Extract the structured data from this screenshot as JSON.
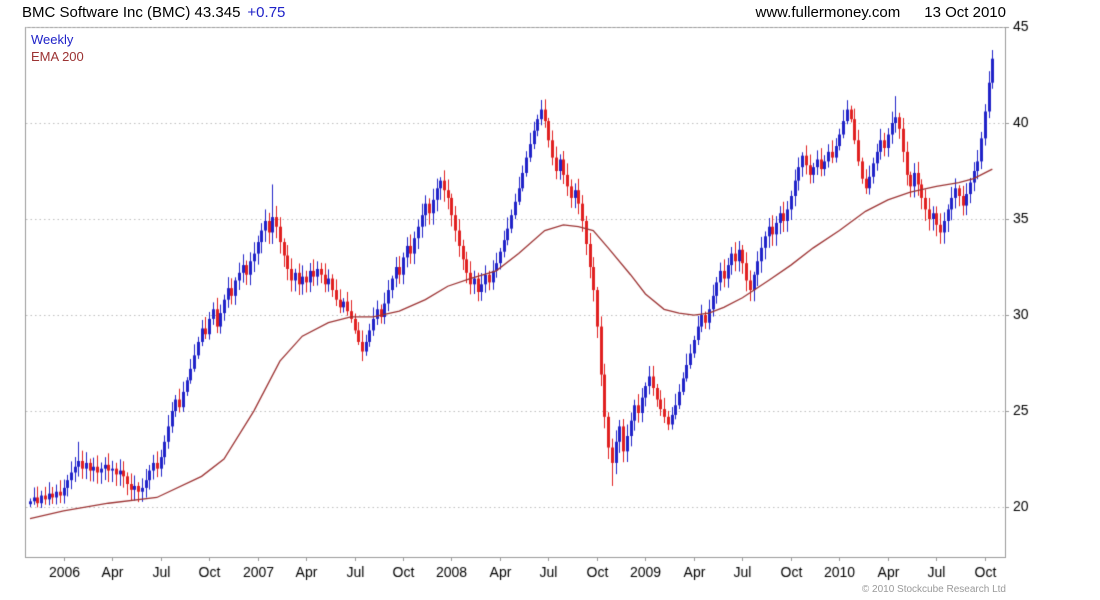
{
  "header": {
    "title": "BMC Software Inc (BMC) 43.345",
    "change": "+0.75",
    "site": "www.fullermoney.com",
    "date": "13 Oct 2010"
  },
  "legend": {
    "series": "Weekly",
    "overlay": "EMA 200"
  },
  "footer": {
    "copyright": "© 2010 Stockcube Research Ltd"
  },
  "colors": {
    "up": "#2023c8",
    "down": "#e02020",
    "ema": "#9c3333",
    "grid": "#bdbdbd",
    "border": "#9a9a9a",
    "text": "#000000"
  },
  "chart_data": {
    "type": "candlestick",
    "interval": "weekly",
    "symbol": "BMC",
    "title": "BMC Software Inc (BMC)",
    "ylim": [
      17.4,
      45
    ],
    "yticks": [
      20,
      25,
      30,
      35,
      40,
      45
    ],
    "grid": "horizontal-dotted",
    "legend_position": "top-left",
    "xticks": [
      {
        "i": 9,
        "label": "2006"
      },
      {
        "i": 22,
        "label": "Apr"
      },
      {
        "i": 35,
        "label": "Jul"
      },
      {
        "i": 48,
        "label": "Oct"
      },
      {
        "i": 61,
        "label": "2007"
      },
      {
        "i": 74,
        "label": "Apr"
      },
      {
        "i": 87,
        "label": "Jul"
      },
      {
        "i": 100,
        "label": "Oct"
      },
      {
        "i": 113,
        "label": "2008"
      },
      {
        "i": 126,
        "label": "Apr"
      },
      {
        "i": 139,
        "label": "Jul"
      },
      {
        "i": 152,
        "label": "Oct"
      },
      {
        "i": 165,
        "label": "2009"
      },
      {
        "i": 178,
        "label": "Apr"
      },
      {
        "i": 191,
        "label": "Jul"
      },
      {
        "i": 204,
        "label": "Oct"
      },
      {
        "i": 217,
        "label": "2010"
      },
      {
        "i": 230,
        "label": "Apr"
      },
      {
        "i": 243,
        "label": "Jul"
      },
      {
        "i": 256,
        "label": "Oct"
      }
    ],
    "closes": [
      20.3,
      20.5,
      20.2,
      20.6,
      20.4,
      20.7,
      20.5,
      20.8,
      20.6,
      21.0,
      21.4,
      21.8,
      22.1,
      22.4,
      22.0,
      22.3,
      21.9,
      22.1,
      21.8,
      22.0,
      22.2,
      21.9,
      22.0,
      21.7,
      21.9,
      21.6,
      21.2,
      20.9,
      21.1,
      20.8,
      21.0,
      21.4,
      21.9,
      22.3,
      22.0,
      22.6,
      23.4,
      24.2,
      25.0,
      25.6,
      25.2,
      26.0,
      26.6,
      27.2,
      27.9,
      28.6,
      29.3,
      29.0,
      29.8,
      30.3,
      29.4,
      30.1,
      30.8,
      31.4,
      31.0,
      31.8,
      32.2,
      32.6,
      32.1,
      32.8,
      33.2,
      33.8,
      34.4,
      34.9,
      34.3,
      35.1,
      34.6,
      33.8,
      33.1,
      32.4,
      31.8,
      32.2,
      31.6,
      32.0,
      31.7,
      32.3,
      32.0,
      32.4,
      32.1,
      31.6,
      31.9,
      31.3,
      30.8,
      30.4,
      30.7,
      30.2,
      29.8,
      29.2,
      28.6,
      28.1,
      28.6,
      29.2,
      29.8,
      30.3,
      29.9,
      30.6,
      31.3,
      31.9,
      32.5,
      32.1,
      33.0,
      33.6,
      33.2,
      34.0,
      34.6,
      35.2,
      35.8,
      35.3,
      36.0,
      36.6,
      37.0,
      36.5,
      36.1,
      35.2,
      34.4,
      33.6,
      32.9,
      32.2,
      31.6,
      31.9,
      31.2,
      31.6,
      32.1,
      31.7,
      32.3,
      32.7,
      33.3,
      33.9,
      34.5,
      35.2,
      35.9,
      36.6,
      37.4,
      38.2,
      38.9,
      39.6,
      40.2,
      40.7,
      40.1,
      39.1,
      38.2,
      37.5,
      38.1,
      37.3,
      36.7,
      36.1,
      36.5,
      35.8,
      34.9,
      33.7,
      32.5,
      31.3,
      29.4,
      26.9,
      24.7,
      23.1,
      22.3,
      23.4,
      24.2,
      22.9,
      23.7,
      24.5,
      25.3,
      24.9,
      25.7,
      26.3,
      26.8,
      26.2,
      25.6,
      25.1,
      24.7,
      24.3,
      24.8,
      25.3,
      26.0,
      26.7,
      27.4,
      28.0,
      28.7,
      29.4,
      30.0,
      29.6,
      30.3,
      31.0,
      31.7,
      32.3,
      31.9,
      32.6,
      33.2,
      32.8,
      33.4,
      32.7,
      31.8,
      31.3,
      32.1,
      32.8,
      33.5,
      34.1,
      34.6,
      34.2,
      34.8,
      35.3,
      34.9,
      35.5,
      36.2,
      37.0,
      37.7,
      38.3,
      37.8,
      37.3,
      37.7,
      38.1,
      37.6,
      38.0,
      38.5,
      38.2,
      38.8,
      39.4,
      40.1,
      40.7,
      40.2,
      39.1,
      38.0,
      37.1,
      36.6,
      37.2,
      37.9,
      38.5,
      39.1,
      38.7,
      39.4,
      40.0,
      40.3,
      39.7,
      38.5,
      37.3,
      36.7,
      37.4,
      36.8,
      36.1,
      35.5,
      35.0,
      35.3,
      34.7,
      34.3,
      34.9,
      35.5,
      36.1,
      36.6,
      36.2,
      35.7,
      36.3,
      36.9,
      37.5,
      38.0,
      39.2,
      40.6,
      42.1,
      43.35
    ],
    "extremes": [
      {
        "i": 13,
        "high": 23.4
      },
      {
        "i": 65,
        "high": 36.8
      },
      {
        "i": 89,
        "low": 27.6
      },
      {
        "i": 137,
        "high": 41.2
      },
      {
        "i": 156,
        "low": 21.1
      },
      {
        "i": 232,
        "high": 41.4
      },
      {
        "i": 258,
        "high": 43.8
      }
    ],
    "ema_points": [
      [
        0,
        19.4
      ],
      [
        9,
        19.8
      ],
      [
        21,
        20.2
      ],
      [
        34,
        20.5
      ],
      [
        46,
        21.6
      ],
      [
        52,
        22.5
      ],
      [
        60,
        25.0
      ],
      [
        67,
        27.6
      ],
      [
        73,
        28.9
      ],
      [
        80,
        29.6
      ],
      [
        86,
        29.9
      ],
      [
        92,
        29.9
      ],
      [
        99,
        30.2
      ],
      [
        106,
        30.8
      ],
      [
        112,
        31.5
      ],
      [
        118,
        31.9
      ],
      [
        125,
        32.3
      ],
      [
        131,
        33.2
      ],
      [
        138,
        34.4
      ],
      [
        143,
        34.7
      ],
      [
        147,
        34.6
      ],
      [
        151,
        34.4
      ],
      [
        155,
        33.5
      ],
      [
        161,
        32.1
      ],
      [
        165,
        31.1
      ],
      [
        170,
        30.3
      ],
      [
        174,
        30.1
      ],
      [
        178,
        30.0
      ],
      [
        182,
        30.1
      ],
      [
        186,
        30.4
      ],
      [
        191,
        30.9
      ],
      [
        198,
        31.8
      ],
      [
        204,
        32.6
      ],
      [
        210,
        33.5
      ],
      [
        217,
        34.4
      ],
      [
        224,
        35.4
      ],
      [
        230,
        36.0
      ],
      [
        236,
        36.4
      ],
      [
        243,
        36.7
      ],
      [
        249,
        36.9
      ],
      [
        253,
        37.1
      ],
      [
        256,
        37.4
      ],
      [
        258,
        37.6
      ]
    ]
  }
}
